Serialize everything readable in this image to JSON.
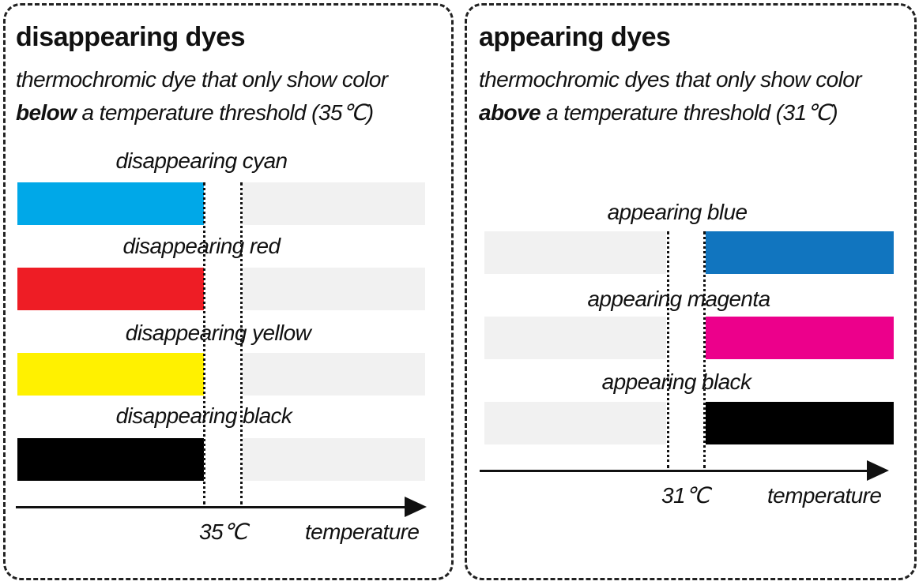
{
  "left": {
    "title": "disappearing dyes",
    "subtitle_line1": "thermochromic dye that only show color",
    "subtitle_emph": "below",
    "subtitle_line2_rest": " a temperature threshold (35℃)",
    "dyes": [
      {
        "label": "disappearing cyan",
        "color": "#00a8e8"
      },
      {
        "label": "disappearing red",
        "color": "#ee1d25"
      },
      {
        "label": "disappearing yellow",
        "color": "#fff100"
      },
      {
        "label": "disappearing black",
        "color": "#000000"
      }
    ],
    "threshold_label": "35℃",
    "axis_label": "temperature"
  },
  "right": {
    "title": "appearing dyes",
    "subtitle_line1": "thermochromic dyes that only show color",
    "subtitle_emph": "above",
    "subtitle_line2_rest": " a temperature threshold (31℃)",
    "dyes": [
      {
        "label": "appearing blue",
        "color": "#1175bf"
      },
      {
        "label": "appearing magenta",
        "color": "#ec008b"
      },
      {
        "label": "appearing black",
        "color": "#000000"
      }
    ],
    "threshold_label": "31℃",
    "axis_label": "temperature"
  },
  "colors": {
    "inactive_bar": "#f1f1f1",
    "border": "#222222"
  }
}
